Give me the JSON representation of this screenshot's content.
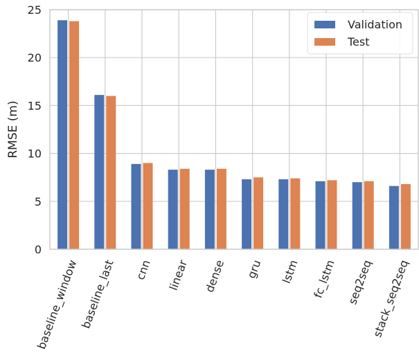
{
  "chart_data": {
    "type": "bar",
    "title": "",
    "xlabel": "",
    "ylabel": "RMSE (m)",
    "ylim": [
      0,
      25
    ],
    "yticks": [
      0,
      5,
      10,
      15,
      20,
      25
    ],
    "grid": true,
    "legend_position": "top-right",
    "categories": [
      "baseline_window",
      "baseline_last",
      "cnn",
      "linear",
      "dense",
      "gru",
      "lstm",
      "fc_lstm",
      "seq2seq",
      "stack_seq2seq"
    ],
    "series": [
      {
        "name": "Validation",
        "color": "#4c72b0",
        "values": [
          23.9,
          16.1,
          8.9,
          8.3,
          8.3,
          7.3,
          7.3,
          7.1,
          7.0,
          6.6
        ]
      },
      {
        "name": "Test",
        "color": "#dd8452",
        "values": [
          23.8,
          16.0,
          9.0,
          8.4,
          8.4,
          7.5,
          7.4,
          7.2,
          7.1,
          6.8
        ]
      }
    ]
  }
}
